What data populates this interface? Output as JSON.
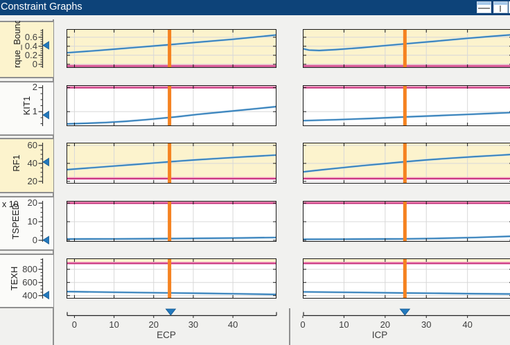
{
  "window": {
    "title": "Constraint Graphs",
    "icons": [
      {
        "name": "split-horizontal-icon"
      },
      {
        "name": "split-vertical-icon"
      },
      {
        "name": "clipped-edge-icon"
      }
    ]
  },
  "colors": {
    "titlebar": "#0d4379",
    "background": "#f1f1ef",
    "panel_border": "#8f8f8f",
    "panel_white": "#fbfbf9",
    "infeasible_fill": "#fcf3cd",
    "constraint_line": "#c9317e",
    "constraint_line_light": "#f19cc2",
    "signal_line": "#2f7cb8",
    "signal_halo": "#a9cce6",
    "marker_orange": "#f58220",
    "slider_blue": "#2379bd",
    "slider_blue_dark": "#13578f",
    "plot_border": "#1a1a1a",
    "grid": "#d8d8d8",
    "axis_line": "#222222",
    "tick_text": "#3d3d3d"
  },
  "chart_data": {
    "type": "line",
    "description": "Constraint outputs plotted against ECP and ICP; yellow band = infeasible region above/below magenta constraint boundary; orange bar and blue sliders mark the current operating point",
    "x_axes": [
      {
        "label": "ECP",
        "xlim": [
          -2,
          51
        ],
        "ticks": [
          0,
          10,
          20,
          30,
          40
        ],
        "slider_value": 24.3,
        "marker_value": 24
      },
      {
        "label": "ICP",
        "xlim": [
          0,
          51
        ],
        "ticks": [
          0,
          10,
          20,
          30,
          40
        ],
        "slider_value": 24.8,
        "marker_value": 24.8
      }
    ],
    "rows": [
      {
        "label": "rque_Bounda",
        "panel_highlight": true,
        "ylim": [
          -0.08,
          0.78
        ],
        "yticks": [
          0.6,
          0.4,
          0.2,
          0
        ],
        "constraint_value": -0.04,
        "infeasible_band": [
          -0.04,
          0.78
        ],
        "panel_slider_value": 0.42,
        "series": [
          {
            "axis": "ECP",
            "points": [
              [
                -2,
                0.255
              ],
              [
                5,
                0.3
              ],
              [
                10,
                0.335
              ],
              [
                15,
                0.37
              ],
              [
                20,
                0.405
              ],
              [
                24,
                0.435
              ],
              [
                30,
                0.48
              ],
              [
                40,
                0.555
              ],
              [
                51,
                0.65
              ]
            ]
          },
          {
            "axis": "ICP",
            "points": [
              [
                0,
                0.345
              ],
              [
                1.5,
                0.315
              ],
              [
                4,
                0.305
              ],
              [
                8,
                0.325
              ],
              [
                14,
                0.365
              ],
              [
                20,
                0.415
              ],
              [
                25,
                0.455
              ],
              [
                32,
                0.51
              ],
              [
                40,
                0.575
              ],
              [
                46,
                0.62
              ],
              [
                51,
                0.655
              ]
            ]
          }
        ]
      },
      {
        "label": "KIT1",
        "panel_highlight": false,
        "ylim": [
          0.4,
          2.1
        ],
        "yticks": [
          2,
          1
        ],
        "constraint_value": 2.0,
        "infeasible_band": null,
        "panel_slider_value": 0.86,
        "series": [
          {
            "axis": "ECP",
            "points": [
              [
                -2,
                0.49
              ],
              [
                3,
                0.515
              ],
              [
                8,
                0.55
              ],
              [
                13,
                0.6
              ],
              [
                18,
                0.665
              ],
              [
                22,
                0.725
              ],
              [
                26,
                0.79
              ],
              [
                31,
                0.885
              ],
              [
                36,
                0.965
              ],
              [
                41,
                1.045
              ],
              [
                46,
                1.125
              ],
              [
                51,
                1.21
              ]
            ]
          },
          {
            "axis": "ICP",
            "points": [
              [
                0,
                0.625
              ],
              [
                8,
                0.665
              ],
              [
                16,
                0.715
              ],
              [
                24,
                0.775
              ],
              [
                32,
                0.83
              ],
              [
                40,
                0.885
              ],
              [
                46,
                0.93
              ],
              [
                51,
                0.965
              ]
            ]
          }
        ]
      },
      {
        "label": "RF1",
        "panel_highlight": true,
        "ylim": [
          17.5,
          63
        ],
        "yticks": [
          60,
          40,
          20
        ],
        "constraint_value": 23,
        "infeasible_band": [
          23,
          63
        ],
        "panel_slider_value": 41.5,
        "series": [
          {
            "axis": "ECP",
            "points": [
              [
                -2,
                33
              ],
              [
                4,
                35
              ],
              [
                10,
                37
              ],
              [
                16,
                39
              ],
              [
                20,
                40.4
              ],
              [
                24,
                41.8
              ],
              [
                30,
                43.7
              ],
              [
                36,
                45.4
              ],
              [
                42,
                47
              ],
              [
                47,
                48.3
              ],
              [
                51,
                49.3
              ]
            ]
          },
          {
            "axis": "ICP",
            "points": [
              [
                0,
                30.5
              ],
              [
                5,
                33
              ],
              [
                10,
                35.4
              ],
              [
                15,
                37.7
              ],
              [
                20,
                39.8
              ],
              [
                24,
                41.5
              ],
              [
                30,
                43.8
              ],
              [
                36,
                45.8
              ],
              [
                42,
                47.6
              ],
              [
                47,
                48.9
              ],
              [
                51,
                50
              ]
            ]
          }
        ]
      },
      {
        "label": "TSPEED",
        "scale_label": "x 10",
        "panel_highlight": false,
        "ylim": [
          -0.8,
          21.2
        ],
        "yticks": [
          20,
          10,
          0
        ],
        "constraint_value": 20,
        "infeasible_band": [
          20,
          21.2
        ],
        "panel_slider_value": 0.1,
        "series": [
          {
            "axis": "ECP",
            "points": [
              [
                -2,
                0.7
              ],
              [
                10,
                0.78
              ],
              [
                20,
                0.88
              ],
              [
                24,
                0.92
              ],
              [
                32,
                1.05
              ],
              [
                42,
                1.25
              ],
              [
                51,
                1.5
              ]
            ]
          },
          {
            "axis": "ICP",
            "points": [
              [
                0,
                0.55
              ],
              [
                10,
                0.62
              ],
              [
                20,
                0.72
              ],
              [
                24,
                0.78
              ],
              [
                32,
                1.0
              ],
              [
                42,
                1.5
              ],
              [
                51,
                2.2
              ]
            ]
          }
        ]
      },
      {
        "label": "TEXH",
        "panel_highlight": false,
        "ylim": [
          355,
          965
        ],
        "yticks": [
          800,
          600,
          400
        ],
        "constraint_value": 890,
        "infeasible_band": [
          890,
          965
        ],
        "panel_slider_value": 408,
        "series": [
          {
            "axis": "ECP",
            "points": [
              [
                -2,
                461
              ],
              [
                8,
                453
              ],
              [
                16,
                447
              ],
              [
                24,
                441
              ],
              [
                32,
                435
              ],
              [
                42,
                426
              ],
              [
                51,
                418
              ]
            ]
          },
          {
            "axis": "ICP",
            "points": [
              [
                0,
                457
              ],
              [
                8,
                452
              ],
              [
                16,
                446
              ],
              [
                24,
                440
              ],
              [
                32,
                436
              ],
              [
                42,
                429
              ],
              [
                51,
                424
              ]
            ]
          }
        ]
      }
    ]
  }
}
